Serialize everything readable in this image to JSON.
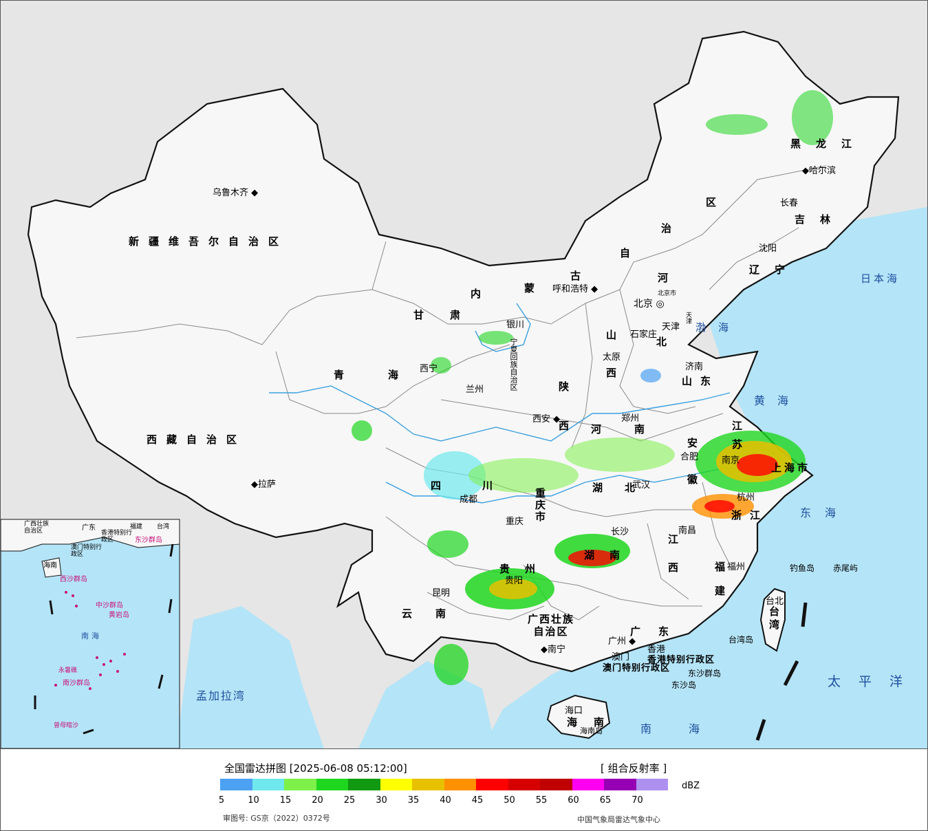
{
  "colors": {
    "sea": "#b4e4f7",
    "outside": "#e6e6e6",
    "land": "#f7f7f7",
    "border": "#111111",
    "province_border": "#8a8a8a",
    "river": "#3aa0e0"
  },
  "header": {
    "title": "全国雷达拼图 [2025-06-08 05:12:00]",
    "product": "[ 组合反射率 ]"
  },
  "legend": {
    "unit": "dBZ",
    "bins": [
      "#4da1f2",
      "#6ee8ec",
      "#7ef04a",
      "#1fd61f",
      "#119a11",
      "#ffff00",
      "#e7c000",
      "#ff9000",
      "#ff0000",
      "#d60000",
      "#c00000",
      "#ff00f0",
      "#9600b4",
      "#ad90f0"
    ],
    "ticks": [
      "5",
      "10",
      "15",
      "20",
      "25",
      "30",
      "35",
      "40",
      "45",
      "50",
      "55",
      "60",
      "65",
      "70"
    ]
  },
  "footer": {
    "approval": "审图号: GS京（2022）0372号",
    "source": "中国气象局雷达气象中心"
  },
  "provinces": [
    {
      "name": "新疆维吾尔自治区"
    },
    {
      "name": "西藏自治区"
    },
    {
      "name": "青海"
    },
    {
      "name": "甘肃"
    },
    {
      "name": "内蒙古"
    },
    {
      "name": "自治区"
    },
    {
      "name": "黑龙江"
    },
    {
      "name": "吉林"
    },
    {
      "name": "辽宁"
    },
    {
      "name": "河北"
    },
    {
      "name": "山西"
    },
    {
      "name": "山东"
    },
    {
      "name": "陕西"
    },
    {
      "name": "河南"
    },
    {
      "name": "四川"
    },
    {
      "name": "重庆市"
    },
    {
      "name": "湖北"
    },
    {
      "name": "安徽"
    },
    {
      "name": "江苏"
    },
    {
      "name": "上海市"
    },
    {
      "name": "浙江"
    },
    {
      "name": "湖南"
    },
    {
      "name": "江西"
    },
    {
      "name": "福建"
    },
    {
      "name": "贵州"
    },
    {
      "name": "云南"
    },
    {
      "name": "广西壮族自治区"
    },
    {
      "name": "广东"
    },
    {
      "name": "海南"
    },
    {
      "name": "台湾"
    },
    {
      "name": "宁夏回族自治区"
    }
  ],
  "cities": [
    {
      "name": "乌鲁木齐"
    },
    {
      "name": "拉萨"
    },
    {
      "name": "西宁"
    },
    {
      "name": "兰州"
    },
    {
      "name": "银川"
    },
    {
      "name": "呼和浩特"
    },
    {
      "name": "哈尔滨"
    },
    {
      "name": "长春"
    },
    {
      "name": "沈阳"
    },
    {
      "name": "北京"
    },
    {
      "name": "天津"
    },
    {
      "name": "石家庄"
    },
    {
      "name": "太原"
    },
    {
      "name": "济南"
    },
    {
      "name": "郑州"
    },
    {
      "name": "西安"
    },
    {
      "name": "成都"
    },
    {
      "name": "重庆"
    },
    {
      "name": "武汉"
    },
    {
      "name": "合肥"
    },
    {
      "name": "南京"
    },
    {
      "name": "杭州"
    },
    {
      "name": "南昌"
    },
    {
      "name": "长沙"
    },
    {
      "name": "福州"
    },
    {
      "name": "贵阳"
    },
    {
      "name": "昆明"
    },
    {
      "name": "南宁"
    },
    {
      "name": "广州"
    },
    {
      "name": "澳门"
    },
    {
      "name": "香港"
    },
    {
      "name": "海口"
    },
    {
      "name": "台北"
    }
  ],
  "seas": [
    {
      "name": "日本海"
    },
    {
      "name": "渤海"
    },
    {
      "name": "黄海"
    },
    {
      "name": "东海"
    },
    {
      "name": "太平洋"
    },
    {
      "name": "南海"
    },
    {
      "name": "孟加拉湾"
    }
  ],
  "islands": [
    {
      "name": "钓鱼岛"
    },
    {
      "name": "赤尾屿"
    },
    {
      "name": "台湾岛"
    },
    {
      "name": "东沙群岛"
    },
    {
      "name": "东沙岛"
    },
    {
      "name": "海南岛"
    }
  ],
  "sar_labels": {
    "hk": "香港特别行政区",
    "macau": "澳门特别行政区",
    "beijing_small": "北京市",
    "tianjin_small": "天津"
  },
  "inset": {
    "sea": "南海",
    "labels": [
      "广西壮族自治区",
      "广东",
      "福建",
      "台湾",
      "香港特别行政区",
      "澳门特别行政区",
      "东沙群岛",
      "海南",
      "西沙群岛",
      "中沙群岛",
      "黄岩岛",
      "南沙群岛",
      "永暑礁",
      "曾母暗沙"
    ]
  }
}
